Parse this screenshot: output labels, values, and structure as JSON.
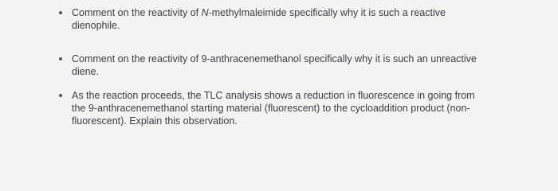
{
  "items": [
    [
      "Comment on the reactivity of ",
      "N",
      "-methylmaleimide specifically why it is such a reactive dienophile."
    ],
    [
      "Comment on the reactivity of 9-anthracenemethanol specifically why it is such an unreactive diene."
    ],
    [
      "As the reaction proceeds, the TLC analysis shows a reduction in fluorescence in going from the 9-anthracenemethanol starting material (fluorescent) to the cycloaddition product (non-fluorescent). Explain this observation."
    ]
  ]
}
